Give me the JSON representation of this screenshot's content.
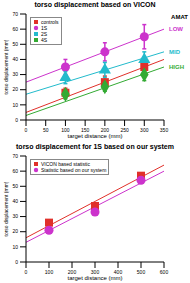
{
  "chart_data": [
    {
      "type": "scatter",
      "title": "torso displacement based on VICON",
      "xlabel": "target distance (mm)",
      "ylabel": "torso displacement (mm)",
      "xlim": [
        0,
        350
      ],
      "xticks": [
        0,
        50,
        100,
        150,
        200,
        250,
        300,
        350
      ],
      "ylim": [
        0,
        70
      ],
      "yticks": [
        0,
        10,
        20,
        30,
        40,
        50,
        60,
        70
      ],
      "legend": "upper left",
      "grid": false,
      "series": [
        {
          "name": "controls",
          "color": "#e0302a",
          "marker": "square",
          "x": [
            100,
            200,
            300
          ],
          "values": [
            18,
            25,
            35
          ],
          "errors": [
            3,
            4,
            5
          ],
          "fit": {
            "x": [
              0,
              350
            ],
            "values": [
              5,
              40
            ]
          }
        },
        {
          "name": "1S",
          "color": "#cc33cc",
          "marker": "circle",
          "x": [
            100,
            200,
            300
          ],
          "values": [
            35,
            45,
            55
          ],
          "errors": [
            5,
            6,
            8
          ],
          "fit": {
            "x": [
              0,
              350
            ],
            "values": [
              25,
              60
            ]
          }
        },
        {
          "name": "2S",
          "color": "#22bbcc",
          "marker": "triangle",
          "x": [
            100,
            200,
            300
          ],
          "values": [
            28,
            33,
            40
          ],
          "errors": [
            4,
            5,
            5
          ],
          "fit": {
            "x": [
              0,
              350
            ],
            "values": [
              17,
              45
            ]
          }
        },
        {
          "name": "4S",
          "color": "#33aa33",
          "marker": "diamond",
          "x": [
            100,
            200,
            300
          ],
          "values": [
            17,
            22,
            30
          ],
          "errors": [
            3,
            3,
            4
          ],
          "fit": {
            "x": [
              0,
              350
            ],
            "values": [
              3,
              35
            ]
          }
        }
      ],
      "annotations": [
        {
          "text": "AMAT",
          "color": "#000000"
        },
        {
          "text": "LOW",
          "color": "#cc33cc",
          "series": "1S"
        },
        {
          "text": "MID",
          "color": "#22bbcc",
          "series": "2S"
        },
        {
          "text": "HIGH",
          "color": "#33aa33",
          "series": "4S"
        }
      ]
    },
    {
      "type": "scatter",
      "title": "torso displacement for 1S based on our system",
      "xlabel": "target distance (mm)",
      "ylabel": "torso displacement (mm)",
      "xlim": [
        0,
        600
      ],
      "xticks": [
        0,
        100,
        200,
        300,
        400,
        500,
        600
      ],
      "ylim": [
        0,
        70
      ],
      "yticks": [
        0,
        10,
        20,
        30,
        40,
        50,
        60,
        70
      ],
      "legend": "upper left",
      "grid": false,
      "series": [
        {
          "name": "VICON based statistic",
          "color": "#e0302a",
          "marker": "square",
          "x": [
            100,
            300,
            500
          ],
          "values": [
            26,
            37,
            57
          ],
          "fit": {
            "x": [
              0,
              600
            ],
            "values": [
              16,
              64
            ]
          }
        },
        {
          "name": "Statistic based on our system",
          "color": "#cc33cc",
          "marker": "circle",
          "x": [
            100,
            300,
            500
          ],
          "values": [
            21,
            33,
            54
          ],
          "fit": {
            "x": [
              0,
              600
            ],
            "values": [
              13,
              60
            ]
          }
        }
      ]
    }
  ]
}
